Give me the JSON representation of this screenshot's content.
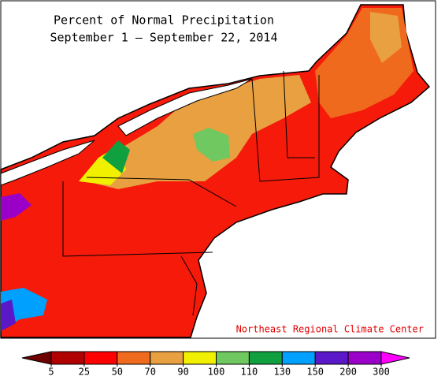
{
  "map": {
    "title": "Percent of Normal Precipitation",
    "subtitle": "September 1 — September 22, 2014",
    "credit": "Northeast Regional Climate Center",
    "legend": {
      "ticks": [
        5,
        25,
        50,
        70,
        90,
        100,
        110,
        130,
        150,
        200,
        300
      ],
      "colors": [
        "#6e0000",
        "#b00000",
        "#ff0000",
        "#f06a1e",
        "#e8a040",
        "#f0f000",
        "#70c860",
        "#10a040",
        "#00a0ff",
        "#5a18c8",
        "#9a00c8",
        "#ff00ff"
      ]
    }
  }
}
